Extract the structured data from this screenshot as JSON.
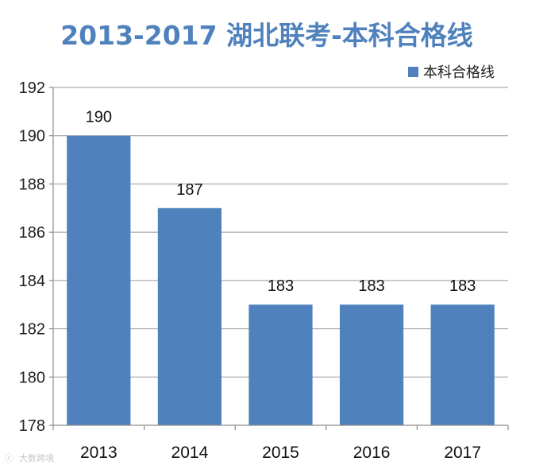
{
  "chart_data": {
    "type": "bar",
    "title": "2013-2017 湖北联考-本科合格线",
    "categories": [
      "2013",
      "2014",
      "2015",
      "2016",
      "2017"
    ],
    "series": [
      {
        "name": "本科合格线",
        "values": [
          190,
          187,
          183,
          183,
          183
        ]
      }
    ],
    "data_labels": [
      "190",
      "187",
      "183",
      "183",
      "183"
    ],
    "ylim": [
      178,
      192
    ],
    "yticks": [
      "178",
      "180",
      "182",
      "184",
      "186",
      "188",
      "190",
      "192"
    ],
    "xlabel": "",
    "ylabel": "",
    "grid": true,
    "legend_position": "top-right",
    "bar_color": "#4f81bd",
    "title_color": "#4f81bd"
  },
  "watermark": "大数跨境"
}
